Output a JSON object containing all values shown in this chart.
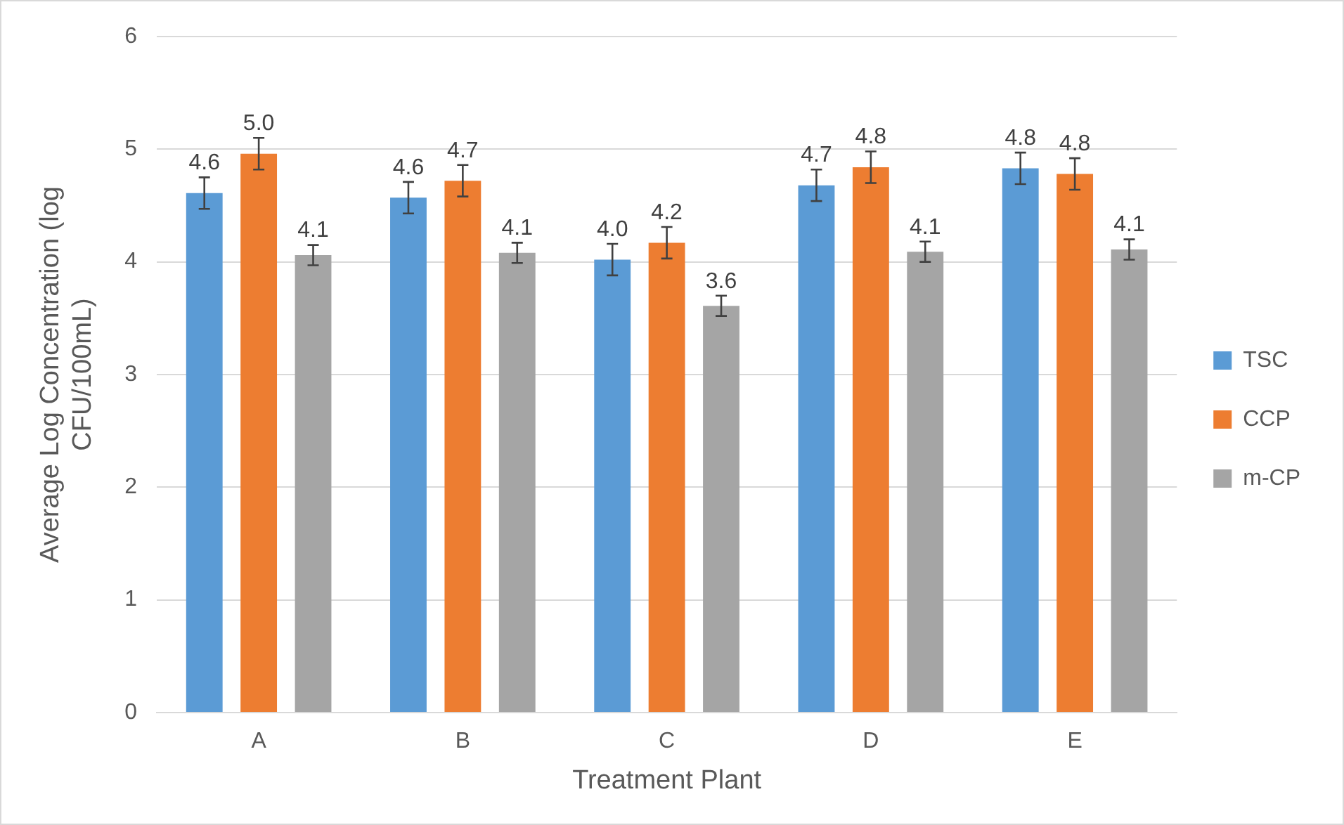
{
  "chart_data": {
    "type": "bar",
    "xlabel": "Treatment Plant",
    "ylabel": "Average Log Concentration (log CFU/100mL)",
    "categories": [
      "A",
      "B",
      "C",
      "D",
      "E"
    ],
    "series": [
      {
        "name": "TSC",
        "color": "#5b9bd5",
        "values": [
          4.61,
          4.57,
          4.02,
          4.68,
          4.83
        ],
        "value_labels": [
          "4.6",
          "4.6",
          "4.0",
          "4.7",
          "4.8"
        ],
        "errors": [
          0.14,
          0.14,
          0.14,
          0.14,
          0.14
        ]
      },
      {
        "name": "CCP",
        "color": "#ed7d31",
        "values": [
          4.96,
          4.72,
          4.17,
          4.84,
          4.78
        ],
        "value_labels": [
          "5.0",
          "4.7",
          "4.2",
          "4.8",
          "4.8"
        ],
        "errors": [
          0.14,
          0.14,
          0.14,
          0.14,
          0.14
        ]
      },
      {
        "name": "m-CP",
        "color": "#a5a5a5",
        "values": [
          4.06,
          4.08,
          3.61,
          4.09,
          4.11
        ],
        "value_labels": [
          "4.1",
          "4.1",
          "3.6",
          "4.1",
          "4.1"
        ],
        "errors": [
          0.09,
          0.09,
          0.09,
          0.09,
          0.09
        ]
      }
    ],
    "ylim": [
      0,
      6
    ],
    "yticks": [
      0,
      1,
      2,
      3,
      4,
      5,
      6
    ],
    "grid": "y",
    "legend": "right"
  }
}
